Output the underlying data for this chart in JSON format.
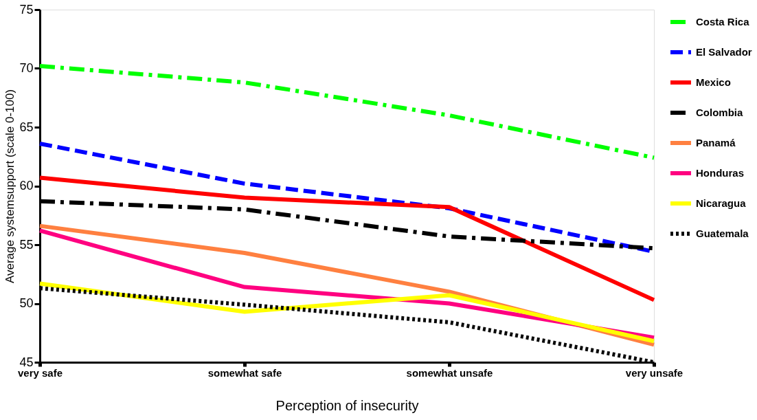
{
  "chart_data": {
    "type": "line",
    "xlabel": "Perception of insecurity",
    "ylabel": "Average systemsupport (scale 0-100)",
    "categories": [
      "very safe",
      "somewhat safe",
      "somewhat unsafe",
      "very unsafe"
    ],
    "ylim": [
      45,
      75
    ],
    "yticks": [
      45,
      50,
      55,
      60,
      65,
      70,
      75
    ],
    "grid": false,
    "legend": "right",
    "marker": "none",
    "series": [
      {
        "name": "Costa Rica",
        "color": "#00ff00",
        "line_style": "dashdot",
        "values": [
          70.2,
          68.8,
          66.0,
          62.4
        ]
      },
      {
        "name": "El Salvador",
        "color": "#0000ff",
        "line_style": "dashed",
        "values": [
          63.6,
          60.2,
          58.1,
          54.4
        ]
      },
      {
        "name": "Mexico",
        "color": "#ff0000",
        "line_style": "solid",
        "values": [
          60.7,
          59.0,
          58.2,
          50.3
        ]
      },
      {
        "name": "Colombia",
        "color": "#000000",
        "line_style": "dashdot",
        "values": [
          58.7,
          58.0,
          55.7,
          54.7
        ]
      },
      {
        "name": "Panamá",
        "color": "#ff8040",
        "line_style": "solid",
        "values": [
          56.6,
          54.3,
          51.0,
          46.5
        ]
      },
      {
        "name": "Honduras",
        "color": "#ff0080",
        "line_style": "solid",
        "values": [
          56.2,
          51.4,
          50.0,
          47.1
        ]
      },
      {
        "name": "Nicaragua",
        "color": "#ffff00",
        "line_style": "solid",
        "values": [
          51.7,
          49.3,
          50.7,
          46.8
        ]
      },
      {
        "name": "Guatemala",
        "color": "#0a0a0a",
        "line_style": "dotted",
        "values": [
          51.3,
          49.9,
          48.4,
          45.0
        ]
      }
    ]
  }
}
